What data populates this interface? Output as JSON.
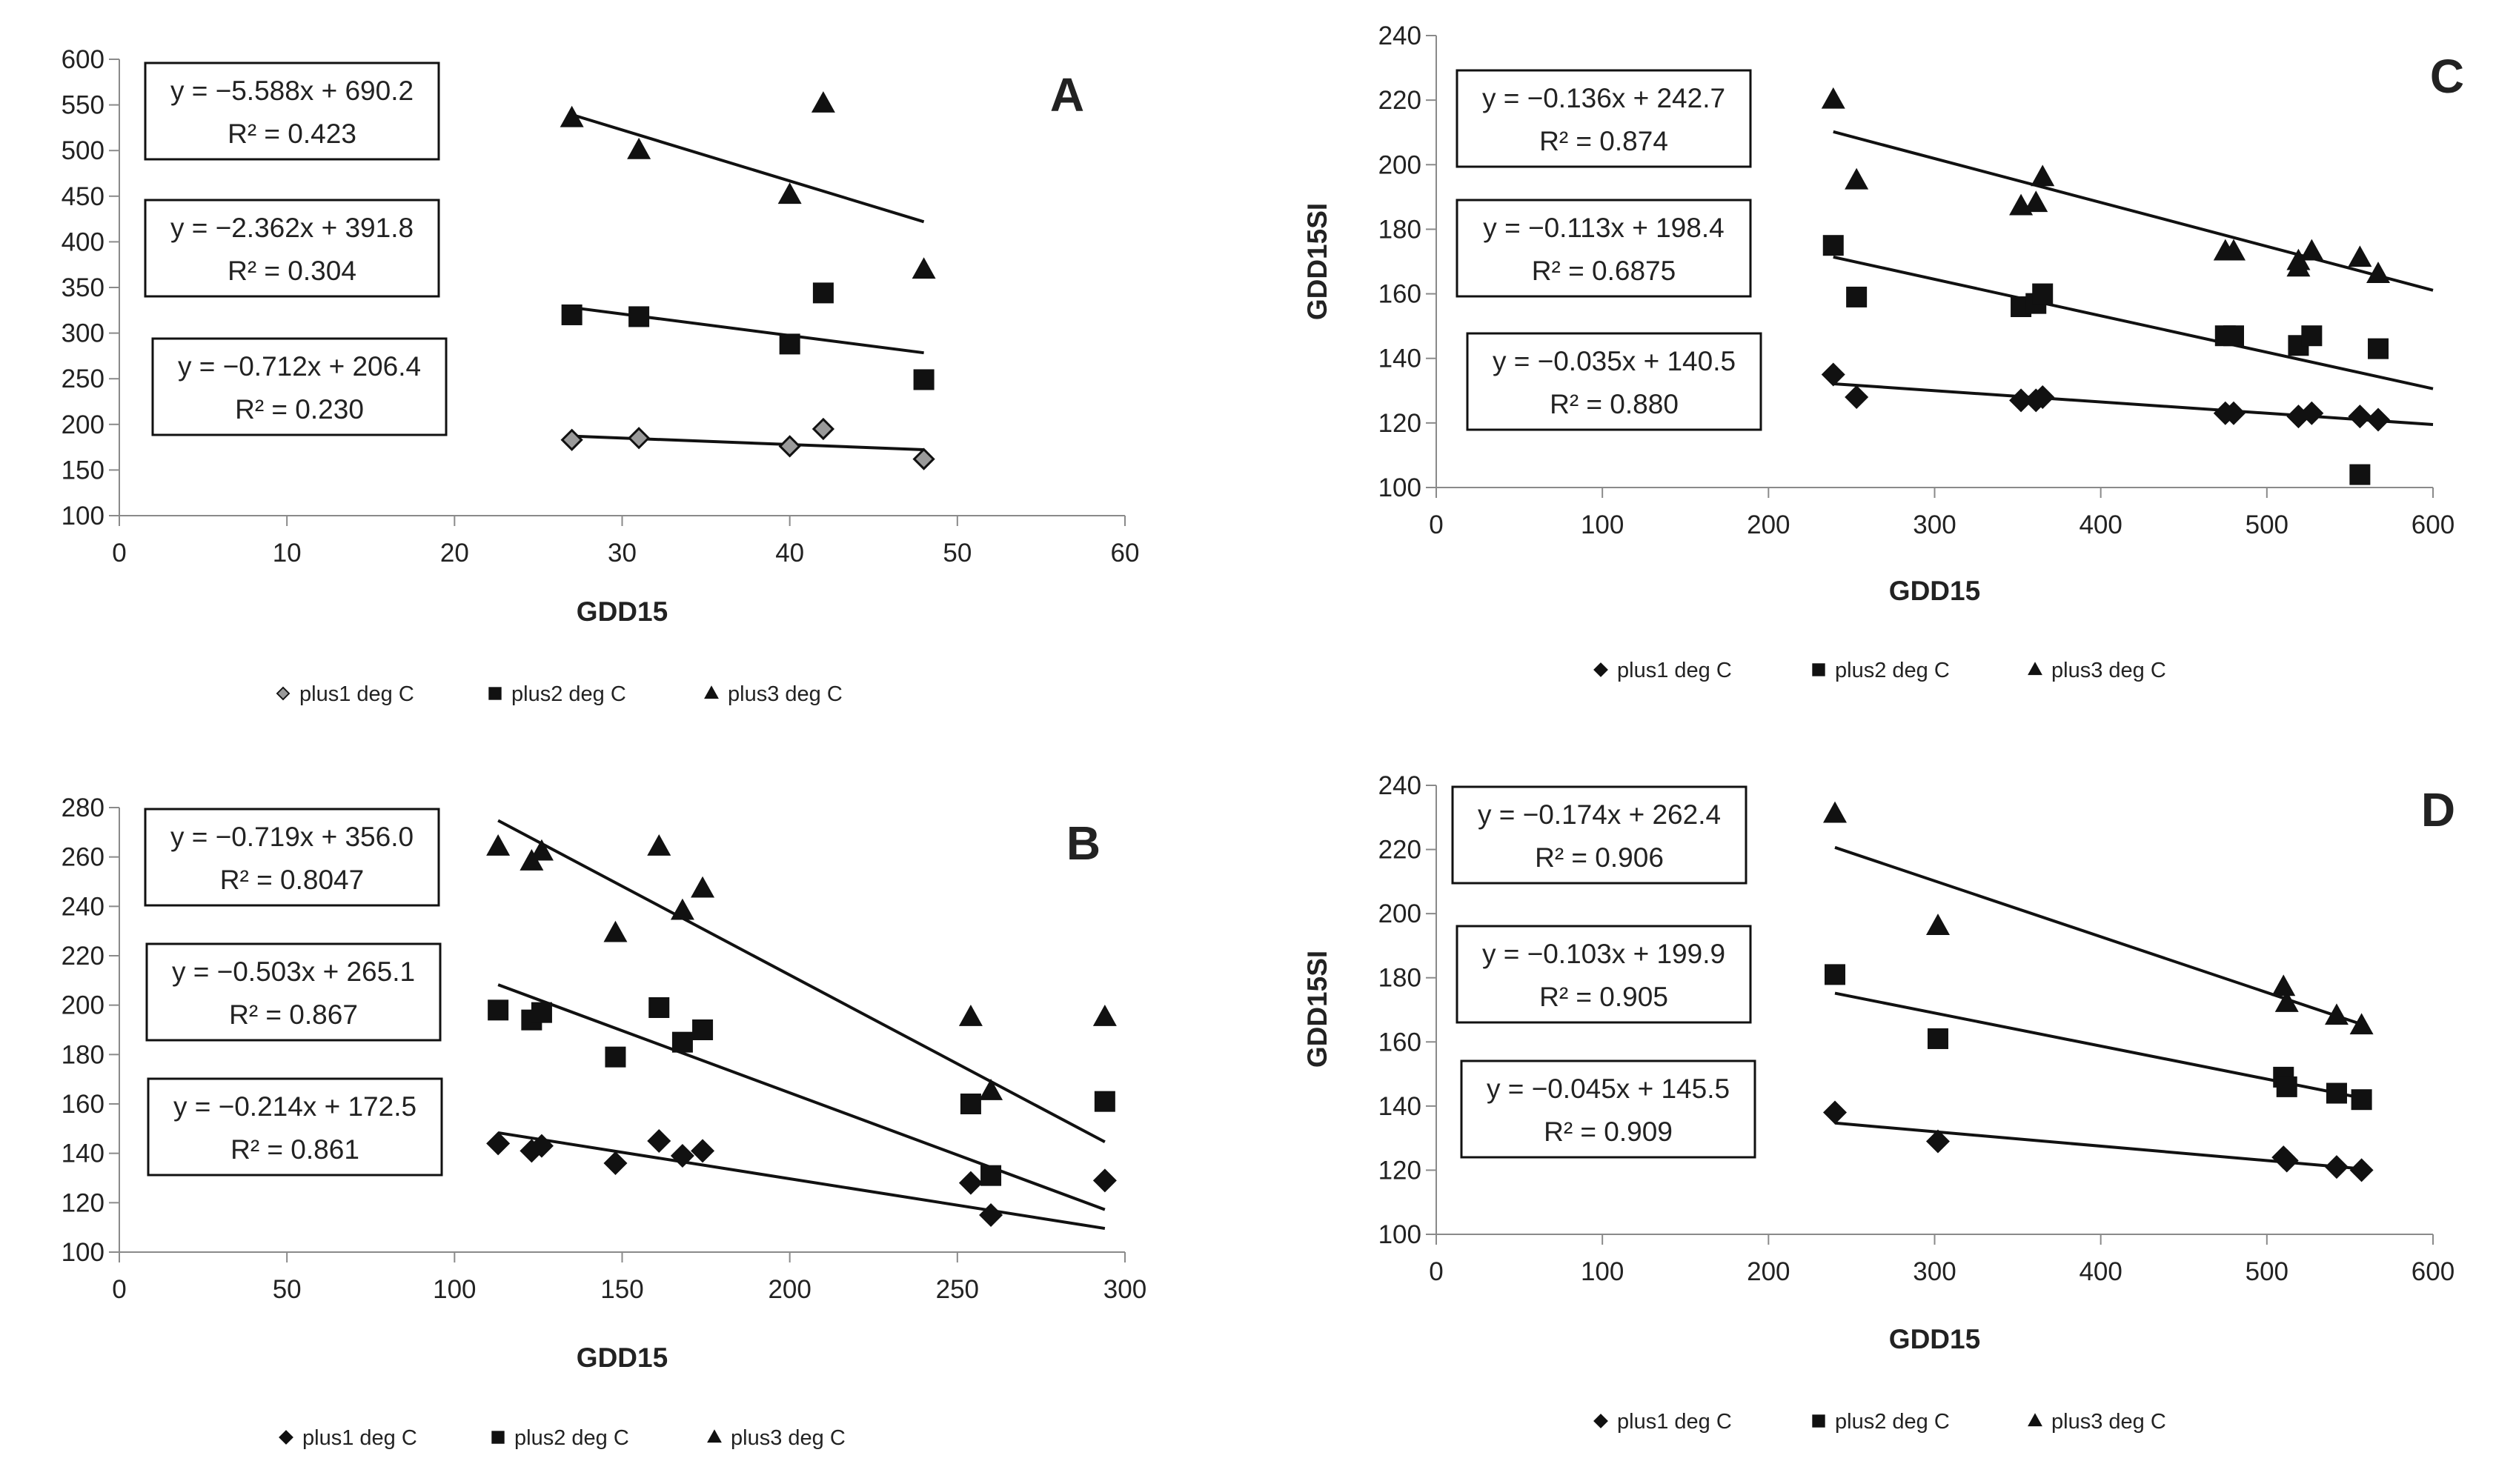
{
  "figure": {
    "legend_labels": [
      "plus1 deg C",
      "plus2 deg C",
      "plus3 deg C"
    ]
  },
  "chart_data": [
    {
      "panel": "A",
      "type": "scatter",
      "title": "A",
      "xlabel": "GDD15",
      "ylabel": "",
      "xlim": [
        0,
        60
      ],
      "ylim": [
        100,
        600
      ],
      "xticks": [
        0,
        10,
        20,
        30,
        40,
        50,
        60
      ],
      "yticks": [
        100,
        150,
        200,
        250,
        300,
        350,
        400,
        450,
        500,
        550,
        600
      ],
      "legend": "bottom",
      "series": [
        {
          "name": "plus1 deg C",
          "marker": "diamond-outline",
          "points": [
            [
              27,
              183
            ],
            [
              31,
              185
            ],
            [
              40,
              176
            ],
            [
              42,
              195
            ],
            [
              48,
              162
            ]
          ],
          "fit": {
            "slope": -0.712,
            "intercept": 206.4,
            "equation": "y = −0.712x + 206.4",
            "r2": "R² = 0.230",
            "range": [
              27,
              48
            ]
          }
        },
        {
          "name": "plus2 deg C",
          "marker": "square",
          "points": [
            [
              27,
              320
            ],
            [
              31,
              318
            ],
            [
              40,
              288
            ],
            [
              42,
              344
            ],
            [
              48,
              249
            ]
          ],
          "fit": {
            "slope": -2.362,
            "intercept": 391.8,
            "equation": "y = −2.362x + 391.8",
            "r2": "R² = 0.304",
            "range": [
              27,
              48
            ]
          }
        },
        {
          "name": "plus3 deg C",
          "marker": "triangle",
          "points": [
            [
              27,
              535
            ],
            [
              31,
              500
            ],
            [
              40,
              451
            ],
            [
              42,
              551
            ],
            [
              48,
              369
            ]
          ],
          "fit": {
            "slope": -5.588,
            "intercept": 690.2,
            "equation": "y = −5.588x + 690.2",
            "r2": "R² = 0.423",
            "range": [
              27,
              48
            ]
          }
        }
      ]
    },
    {
      "panel": "B",
      "type": "scatter",
      "title": "B",
      "xlabel": "GDD15",
      "ylabel": "",
      "xlim": [
        0,
        300
      ],
      "ylim": [
        100,
        280
      ],
      "xticks": [
        0,
        50,
        100,
        150,
        200,
        250,
        300
      ],
      "yticks": [
        100,
        120,
        140,
        160,
        180,
        200,
        220,
        240,
        260,
        280
      ],
      "legend": "bottom",
      "series": [
        {
          "name": "plus1 deg C",
          "marker": "diamond",
          "points": [
            [
              113,
              144
            ],
            [
              123,
              141
            ],
            [
              126,
              143
            ],
            [
              148,
              136
            ],
            [
              161,
              145
            ],
            [
              168,
              139
            ],
            [
              174,
              141
            ],
            [
              254,
              128
            ],
            [
              260,
              115
            ],
            [
              294,
              129
            ]
          ],
          "fit": {
            "slope": -0.214,
            "intercept": 172.5,
            "equation": "y = −0.214x + 172.5",
            "r2": "R² = 0.861",
            "range": [
              113,
              294
            ]
          }
        },
        {
          "name": "plus2 deg C",
          "marker": "square",
          "points": [
            [
              113,
              198
            ],
            [
              123,
              194
            ],
            [
              126,
              197
            ],
            [
              148,
              179
            ],
            [
              161,
              199
            ],
            [
              168,
              185
            ],
            [
              174,
              190
            ],
            [
              254,
              160
            ],
            [
              260,
              131
            ],
            [
              294,
              161
            ]
          ],
          "fit": {
            "slope": -0.503,
            "intercept": 265.1,
            "equation": "y = −0.503x + 265.1",
            "r2": "R² = 0.867",
            "range": [
              113,
              294
            ]
          }
        },
        {
          "name": "plus3 deg C",
          "marker": "triangle",
          "points": [
            [
              113,
              264
            ],
            [
              123,
              258
            ],
            [
              126,
              262
            ],
            [
              148,
              229
            ],
            [
              161,
              264
            ],
            [
              168,
              238
            ],
            [
              174,
              247
            ],
            [
              254,
              195
            ],
            [
              260,
              165
            ],
            [
              294,
              195
            ]
          ],
          "fit": {
            "slope": -0.719,
            "intercept": 356.0,
            "equation": "y = −0.719x + 356.0",
            "r2": "R² = 0.8047",
            "range": [
              113,
              294
            ]
          }
        }
      ]
    },
    {
      "panel": "C",
      "type": "scatter",
      "title": "C",
      "xlabel": "GDD15",
      "ylabel": "GDD15SI",
      "xlim": [
        0,
        600
      ],
      "ylim": [
        100,
        240
      ],
      "xticks": [
        0,
        100,
        200,
        300,
        400,
        500,
        600
      ],
      "yticks": [
        100,
        120,
        140,
        160,
        180,
        200,
        220,
        240
      ],
      "legend": "bottom",
      "series": [
        {
          "name": "plus1 deg C",
          "marker": "diamond",
          "points": [
            [
              239,
              135
            ],
            [
              253,
              128
            ],
            [
              352,
              127
            ],
            [
              361,
              127
            ],
            [
              365,
              128
            ],
            [
              475,
              123
            ],
            [
              480,
              123
            ],
            [
              519,
              122
            ],
            [
              527,
              123
            ],
            [
              556,
              122
            ],
            [
              567,
              121
            ]
          ],
          "fit": {
            "slope": -0.035,
            "intercept": 140.5,
            "equation": "y = −0.035x + 140.5",
            "r2": "R² = 0.880",
            "range": [
              239,
              600
            ]
          }
        },
        {
          "name": "plus2 deg C",
          "marker": "square",
          "points": [
            [
              239,
              175
            ],
            [
              253,
              159
            ],
            [
              352,
              156
            ],
            [
              361,
              157
            ],
            [
              365,
              160
            ],
            [
              475,
              147
            ],
            [
              480,
              147
            ],
            [
              519,
              144
            ],
            [
              527,
              147
            ],
            [
              556,
              104
            ],
            [
              567,
              143
            ]
          ],
          "fit": {
            "slope": -0.113,
            "intercept": 198.4,
            "equation": "y = −0.113x + 198.4",
            "r2": "R² = 0.6875",
            "range": [
              239,
              600
            ]
          }
        },
        {
          "name": "plus3 deg C",
          "marker": "triangle",
          "points": [
            [
              239,
              220
            ],
            [
              253,
              195
            ],
            [
              352,
              187
            ],
            [
              361,
              188
            ],
            [
              365,
              196
            ],
            [
              475,
              173
            ],
            [
              480,
              173
            ],
            [
              519,
              168
            ],
            [
              519,
              170
            ],
            [
              527,
              173
            ],
            [
              556,
              171
            ],
            [
              567,
              166
            ]
          ],
          "fit": {
            "slope": -0.136,
            "intercept": 242.7,
            "equation": "y = −0.136x + 242.7",
            "r2": "R² = 0.874",
            "range": [
              239,
              600
            ]
          }
        }
      ]
    },
    {
      "panel": "D",
      "type": "scatter",
      "title": "D",
      "xlabel": "GDD15",
      "ylabel": "GDD15SI",
      "xlim": [
        0,
        600
      ],
      "ylim": [
        100,
        240
      ],
      "xticks": [
        0,
        100,
        200,
        300,
        400,
        500,
        600
      ],
      "yticks": [
        100,
        120,
        140,
        160,
        180,
        200,
        220,
        240
      ],
      "legend": "bottom",
      "series": [
        {
          "name": "plus1 deg C",
          "marker": "diamond",
          "points": [
            [
              240,
              138
            ],
            [
              302,
              129
            ],
            [
              510,
              124
            ],
            [
              512,
              123
            ],
            [
              542,
              121
            ],
            [
              557,
              120
            ]
          ],
          "fit": {
            "slope": -0.045,
            "intercept": 145.5,
            "equation": "y = −0.045x + 145.5",
            "r2": "R² = 0.909",
            "range": [
              240,
              557
            ]
          }
        },
        {
          "name": "plus2 deg C",
          "marker": "square",
          "points": [
            [
              240,
              181
            ],
            [
              302,
              161
            ],
            [
              510,
              149
            ],
            [
              512,
              146
            ],
            [
              542,
              144
            ],
            [
              557,
              142
            ]
          ],
          "fit": {
            "slope": -0.103,
            "intercept": 199.9,
            "equation": "y = −0.103x + 199.9",
            "r2": "R² = 0.905",
            "range": [
              240,
              557
            ]
          }
        },
        {
          "name": "plus3 deg C",
          "marker": "triangle",
          "points": [
            [
              240,
              231
            ],
            [
              302,
              196
            ],
            [
              510,
              177
            ],
            [
              512,
              172
            ],
            [
              542,
              168
            ],
            [
              557,
              165
            ]
          ],
          "fit": {
            "slope": -0.174,
            "intercept": 262.4,
            "equation": "y = −0.174x + 262.4",
            "r2": "R² = 0.906",
            "range": [
              240,
              557
            ]
          }
        }
      ]
    }
  ]
}
